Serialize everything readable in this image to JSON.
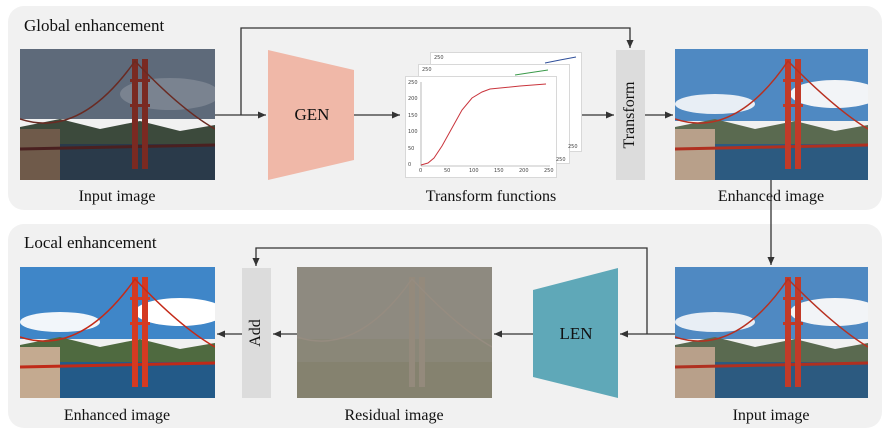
{
  "global": {
    "title": "Global enhancement",
    "input_caption": "Input image",
    "network_label": "GEN",
    "functions_caption": "Transform functions",
    "transform_label": "Transform",
    "output_caption": "Enhanced image"
  },
  "local": {
    "title": "Local enhancement",
    "input_caption": "Input image",
    "network_label": "LEN",
    "residual_caption": "Residual image",
    "add_label": "Add",
    "output_caption": "Enhanced image"
  },
  "plot": {
    "yticks": [
      "0",
      "50",
      "100",
      "150",
      "200",
      "250"
    ],
    "xticks": [
      "0",
      "50",
      "100",
      "150",
      "200",
      "250"
    ],
    "back_ytick": "250",
    "back_xtick": "250"
  },
  "colors": {
    "gen": "#f0b8a8",
    "len": "#5fa8b8",
    "curve_red": "#c9343c",
    "curve_green": "#3a9a4a",
    "curve_blue": "#2f4f9a"
  }
}
